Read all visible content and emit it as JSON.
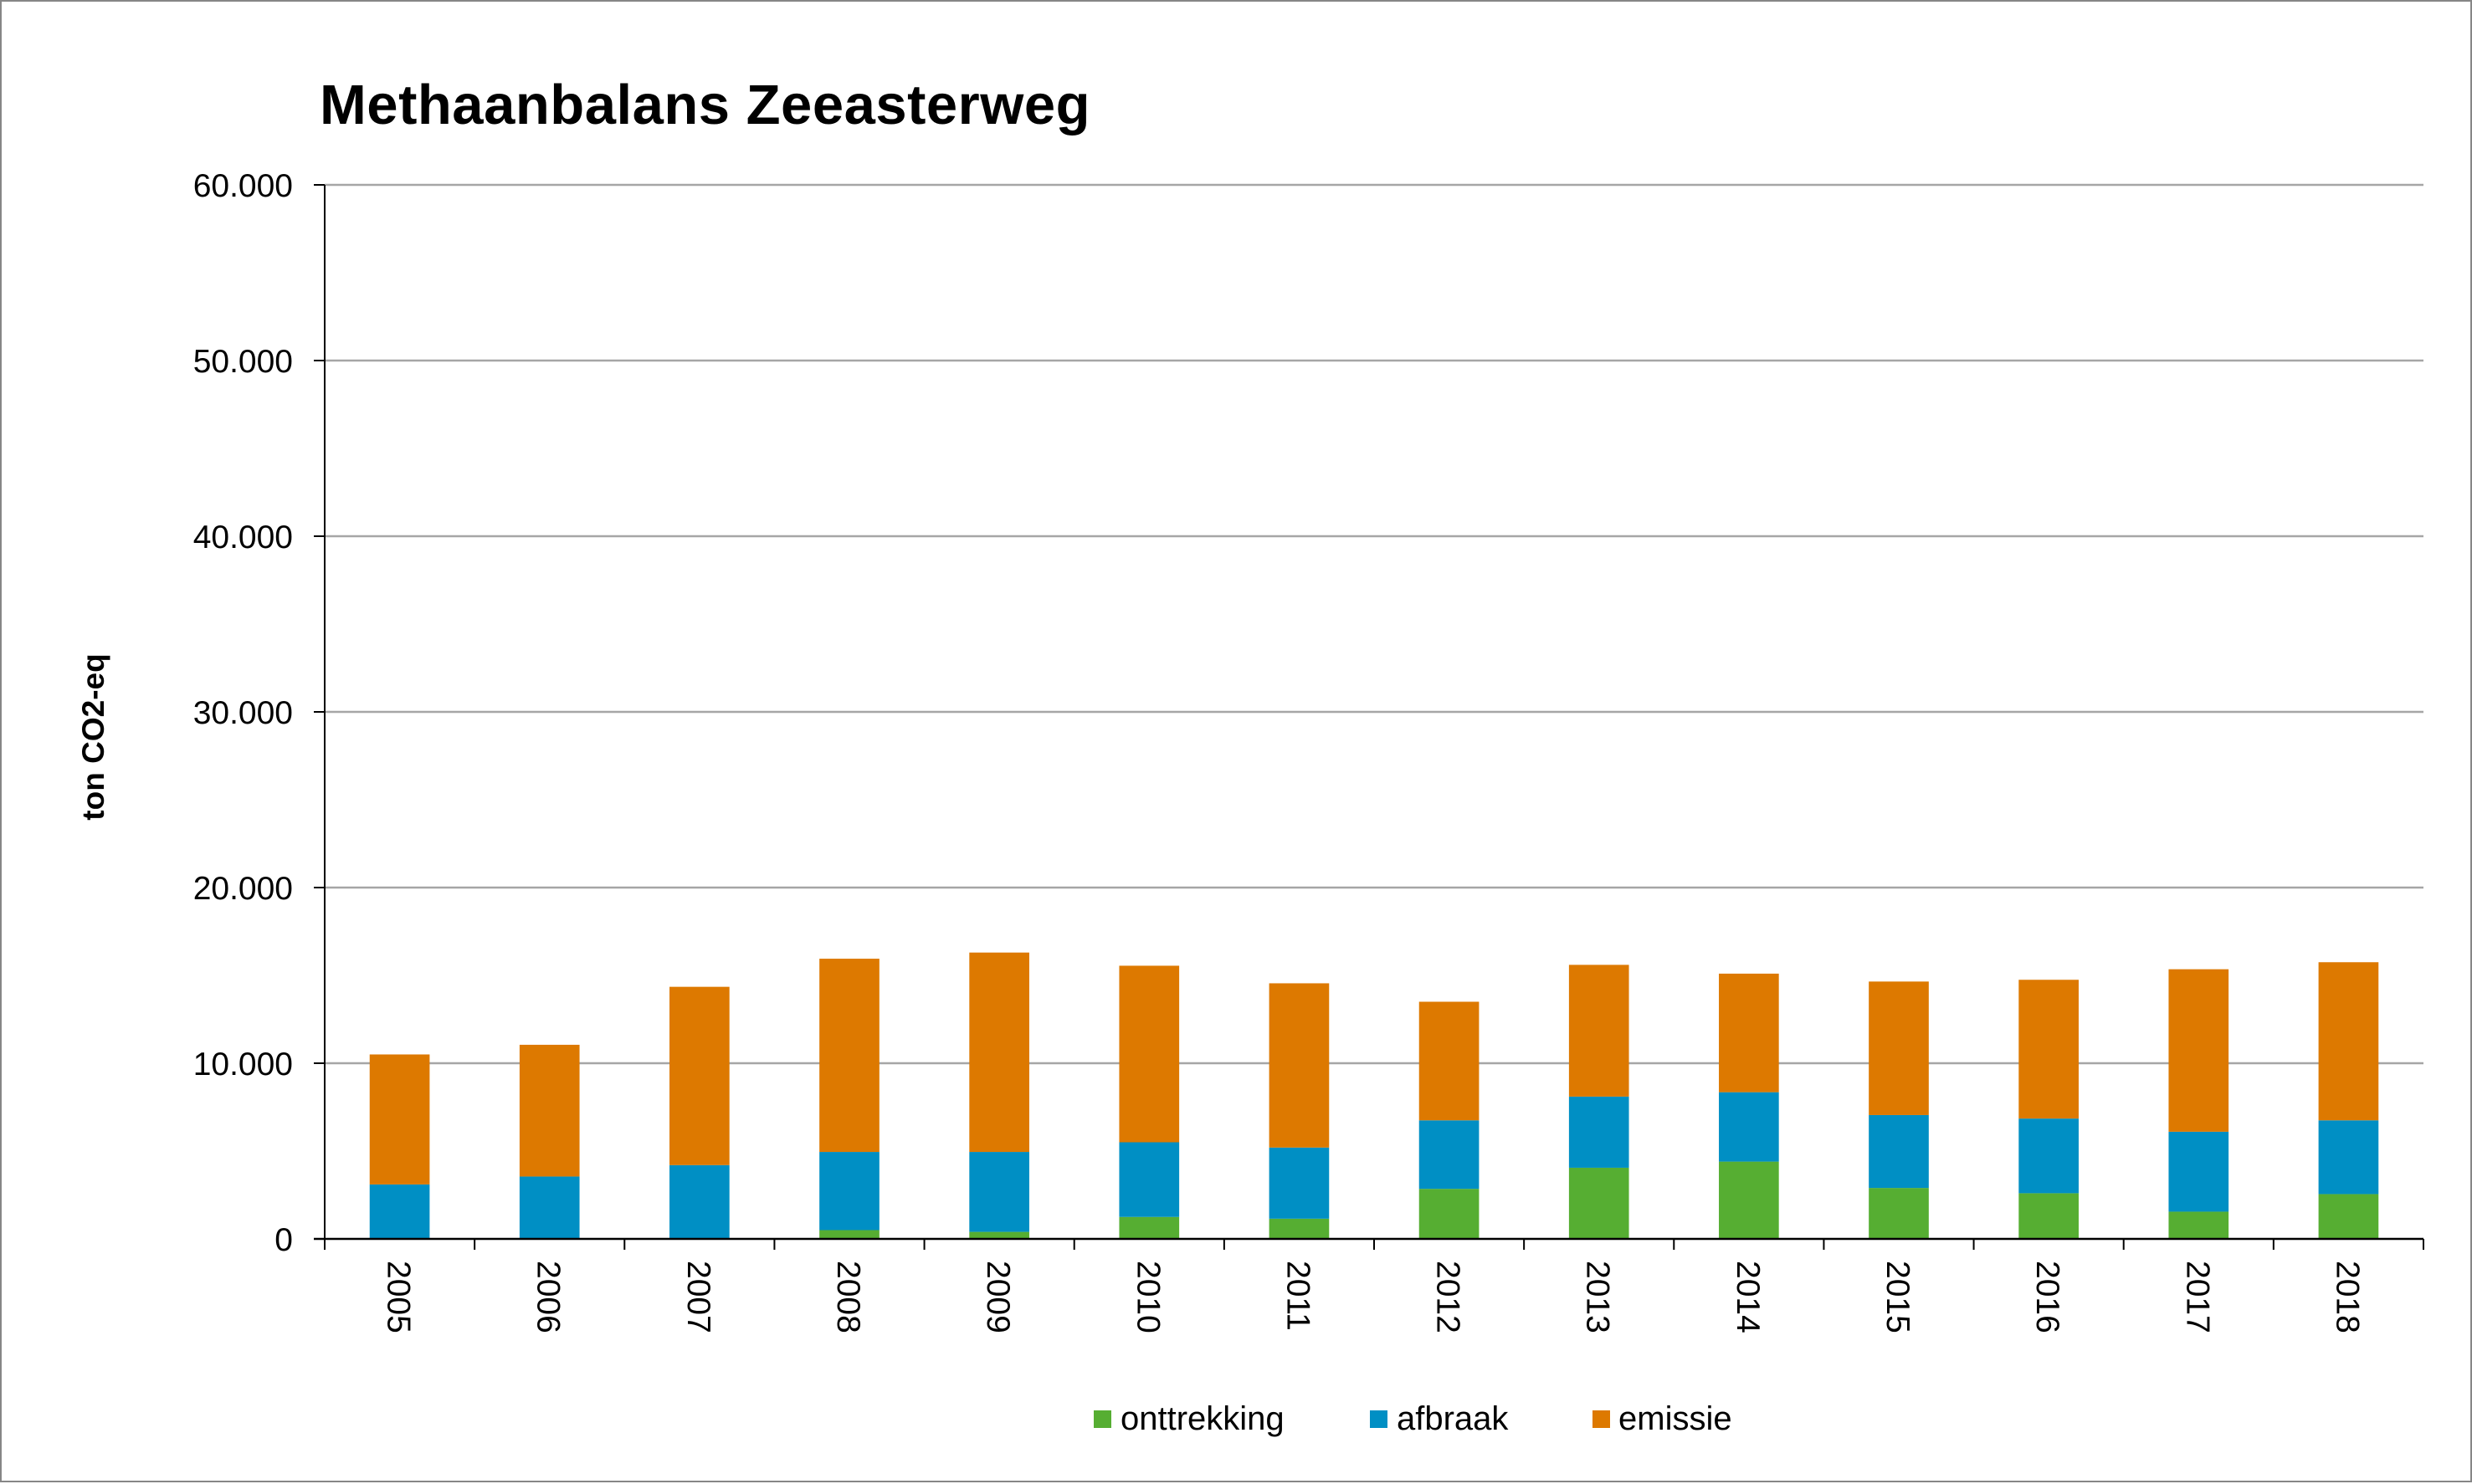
{
  "chart_data": {
    "type": "bar",
    "stacked": true,
    "title": "Methaanbalans Zeeasterweg",
    "xlabel": "",
    "ylabel": "ton CO2-eq",
    "ylim": [
      0,
      60000
    ],
    "yticks": [
      0,
      10000,
      20000,
      30000,
      40000,
      50000,
      60000
    ],
    "ytick_labels": [
      "0",
      "10.000",
      "20.000",
      "30.000",
      "40.000",
      "50.000",
      "60.000"
    ],
    "grid": true,
    "legend_position": "bottom",
    "categories": [
      "2005",
      "2006",
      "2007",
      "2008",
      "2009",
      "2010",
      "2011",
      "2012",
      "2013",
      "2014",
      "2015",
      "2016",
      "2017",
      "2018"
    ],
    "series": [
      {
        "name": "onttrekking",
        "color": "#56AE32",
        "values": [
          0,
          0,
          0,
          500,
          400,
          1250,
          1150,
          2850,
          4050,
          4400,
          2900,
          2600,
          1550,
          2550
        ]
      },
      {
        "name": "afbraak",
        "color": "#008FC4",
        "values": [
          3100,
          3550,
          4200,
          4450,
          4550,
          4250,
          4050,
          3900,
          4050,
          3950,
          4150,
          4250,
          4550,
          4200
        ]
      },
      {
        "name": "emissie",
        "color": "#DD7900",
        "values": [
          7400,
          7500,
          10150,
          11000,
          11350,
          10050,
          9350,
          6750,
          7500,
          6750,
          7600,
          7900,
          9250,
          9000
        ]
      }
    ]
  },
  "colors": {
    "gridline": "#A6A6A6",
    "axis": "#000000",
    "frame": "#868686"
  }
}
